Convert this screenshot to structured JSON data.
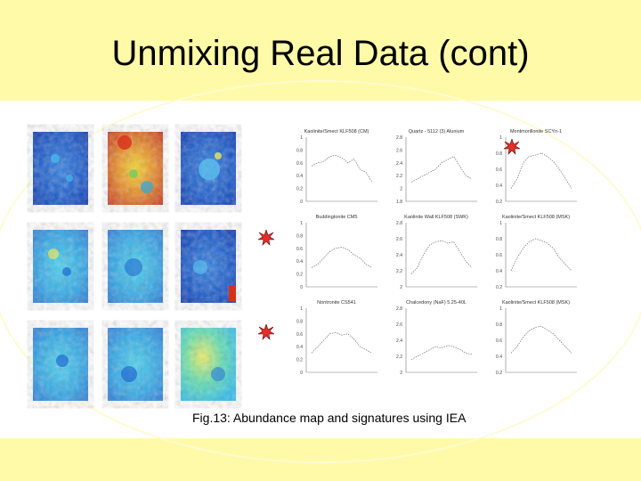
{
  "slide": {
    "title": "Unmixing Real Data (cont)",
    "caption": "Fig.13: Abundance map and signatures using IEA"
  },
  "colors": {
    "band": "#fffaa8",
    "marker": "#e0302a"
  },
  "plots": [
    {
      "title": "Kaolinite/Smect KLF508 (CM)",
      "yticks": [
        "1",
        "0.8",
        "0.6",
        "0.4",
        "0.2",
        "0"
      ]
    },
    {
      "title": "Quartz - 5112 (3) Alunium",
      "yticks": [
        "2.8",
        "2.6",
        "2.4",
        "2.2",
        "2",
        "1.8"
      ]
    },
    {
      "title": "Montmorillonite SCYn-1",
      "yticks": [
        "1",
        "0.8",
        "0.6",
        "0.4",
        "0.2"
      ]
    },
    {
      "title": "Buddingtonite CM5",
      "yticks": [
        "1",
        "0.8",
        "0.6",
        "0.4",
        "0.2",
        "0"
      ]
    },
    {
      "title": "Kaolinite Wall KLF508 (SWK)",
      "yticks": [
        "2.8",
        "2.6",
        "2.4",
        "2.2",
        "2"
      ]
    },
    {
      "title": "Kaolinite/Smect KLF508 (MSK)",
      "yticks": [
        "1",
        "0.8",
        "0.6",
        "0.4",
        "0.2"
      ]
    },
    {
      "title": "Nontronite CS541",
      "yticks": [
        "1",
        "0.8",
        "0.6",
        "0.4",
        "0.2",
        "0"
      ]
    },
    {
      "title": "Chalcedony (NaF) 5.25-40L",
      "yticks": [
        "2.8",
        "2.6",
        "2.4",
        "2.2",
        "2"
      ]
    },
    {
      "title": "Kaolinite/Smect KLF508 (MSK)",
      "yticks": [
        "1",
        "0.8",
        "0.6",
        "0.4",
        "0.2"
      ]
    }
  ]
}
